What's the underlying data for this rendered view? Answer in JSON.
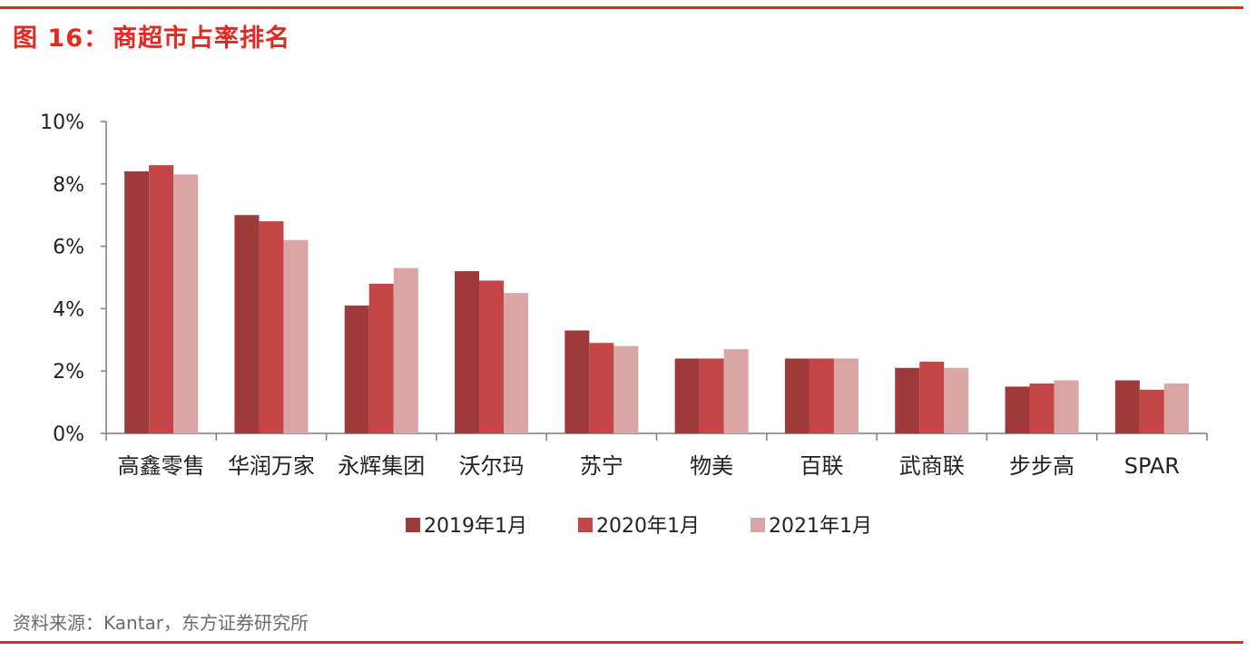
{
  "header": {
    "figure_label": "图",
    "figure_number": "16：",
    "figure_title": "商超市占率排名"
  },
  "source": {
    "text": "资料来源：Kantar，东方证券研究所"
  },
  "chart_data": {
    "type": "bar",
    "title": "商超市占率排名",
    "categories": [
      "高鑫零售",
      "华润万家",
      "永辉集团",
      "沃尔玛",
      "苏宁",
      "物美",
      "百联",
      "武商联",
      "步步高",
      "SPAR"
    ],
    "series": [
      {
        "name": "2019年1月",
        "color": "#9e3a3a",
        "values": [
          8.4,
          7.0,
          4.1,
          5.2,
          3.3,
          2.4,
          2.4,
          2.1,
          1.5,
          1.7
        ]
      },
      {
        "name": "2020年1月",
        "color": "#c44545",
        "values": [
          8.6,
          6.8,
          4.8,
          4.9,
          2.9,
          2.4,
          2.4,
          2.3,
          1.6,
          1.4
        ]
      },
      {
        "name": "2021年1月",
        "color": "#d9a5a5",
        "values": [
          8.3,
          6.2,
          5.3,
          4.5,
          2.8,
          2.7,
          2.4,
          2.1,
          1.7,
          1.6
        ]
      }
    ],
    "yticks": [
      "0%",
      "2%",
      "4%",
      "6%",
      "8%",
      "10%"
    ],
    "ylim": [
      0,
      10
    ],
    "unit": "%",
    "legend_position": "bottom",
    "grid": false
  }
}
